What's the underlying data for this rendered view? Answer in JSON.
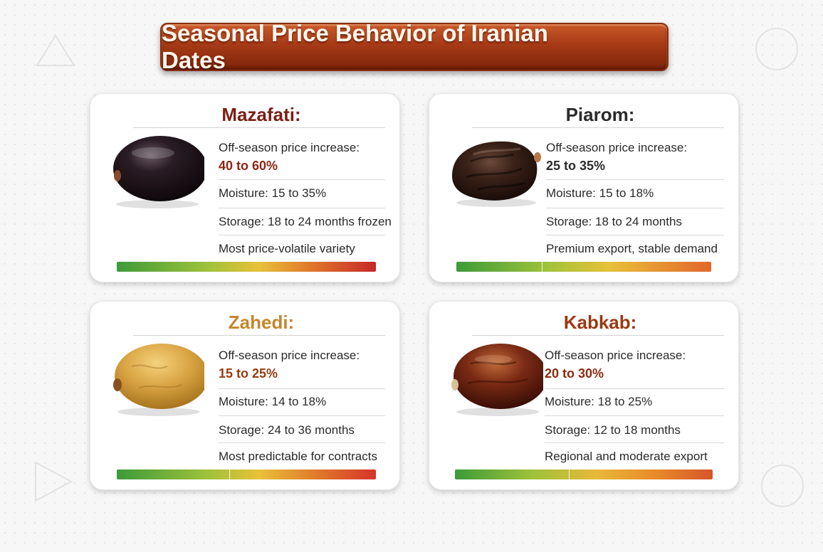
{
  "title": "Seasonal Price Behavior of Iranian Dates",
  "row_labels": {
    "increase": "Off-season price increase:"
  },
  "cards": [
    {
      "name": "Mazafati:",
      "title_color": "#7a1f15",
      "increase": "40 to 60%",
      "increase_color": "#8e2413",
      "moisture": "Moisture:  15 to 35%",
      "storage": "Storage: 18 to 24 months frozen",
      "note": "Most price-volatile variety",
      "date_color": "#1c1418",
      "bar_gradient": [
        "#3d9a3a",
        "#e8c13a",
        "#c62828"
      ]
    },
    {
      "name": "Piarom:",
      "title_color": "#2b2b2b",
      "increase": "25 to 35%",
      "increase_color": "#2b2b2b",
      "moisture": "Moisture:  15 to 18%",
      "storage": "Storage:  18 to 24 months",
      "note": "Premium export, stable demand",
      "date_color": "#2a1812",
      "bar_gradient": [
        "#3d9a3a",
        "#e8c13a",
        "#e2662a"
      ]
    },
    {
      "name": "Zahedi:",
      "title_color": "#c8852c",
      "increase": "15 to 25%",
      "increase_color": "#9a3a10",
      "moisture": "Moisture:  14 to 18%",
      "storage": "Storage: 24 to 36 months",
      "note": "Most predictable for contracts",
      "date_color": "#d9a544",
      "bar_gradient": [
        "#3d9a3a",
        "#e8c13a",
        "#d6332a"
      ]
    },
    {
      "name": "Kabkab:",
      "title_color": "#9a3a12",
      "increase": "20 to 30%",
      "increase_color": "#8e2a10",
      "moisture": "Moisture:  18 to 25%",
      "storage": "Storage: 12 to 18 months",
      "note": "Regional and moderate export",
      "date_color": "#7a2a14",
      "bar_gradient": [
        "#3d9a3a",
        "#e8b83a",
        "#d6552a"
      ]
    }
  ]
}
